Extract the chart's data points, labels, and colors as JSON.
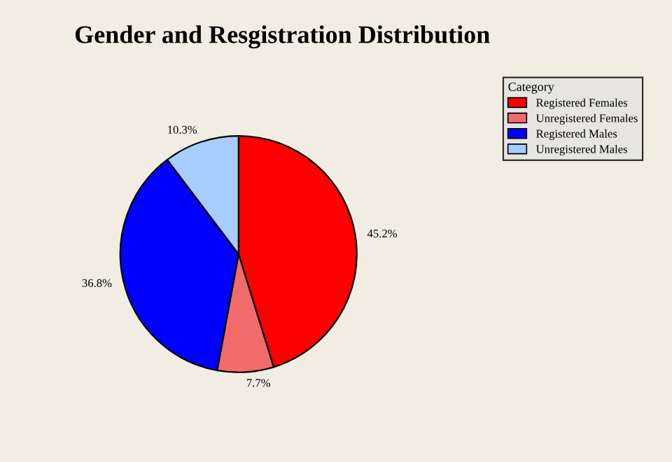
{
  "chart_data": {
    "type": "pie",
    "title": "Gender and Resgistration Distribution",
    "legend_title": "Category",
    "categories": [
      "Registered Females",
      "Unregistered Females",
      "Registered Males",
      "Unregistered Males"
    ],
    "values": [
      45.2,
      7.7,
      36.8,
      10.3
    ],
    "value_labels": [
      "45.2%",
      "7.7%",
      "36.8%",
      "10.3%"
    ],
    "colors": [
      "#ff0000",
      "#f26b6b",
      "#0000ff",
      "#a6cdfe"
    ],
    "legend": "top right"
  }
}
